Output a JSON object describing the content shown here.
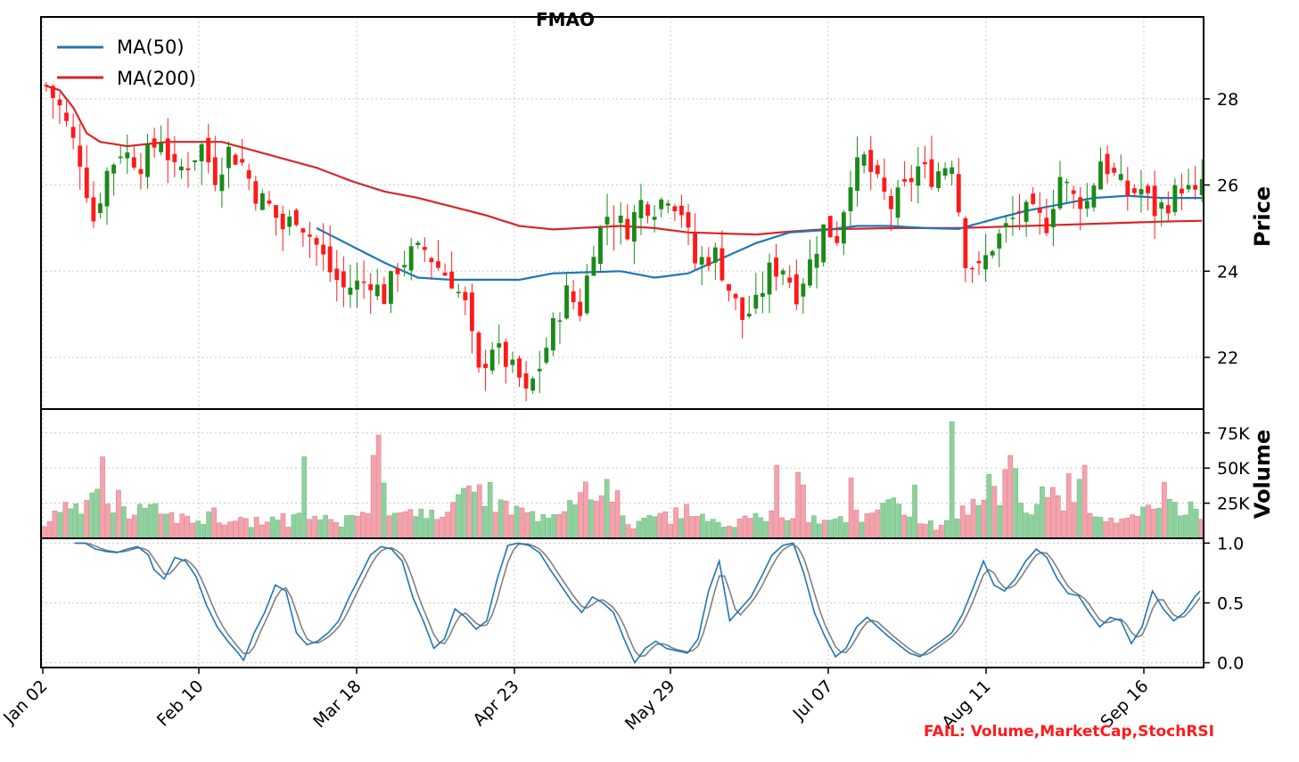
{
  "chart_data": [
    {
      "type": "candlestick",
      "title": "FMAO",
      "ylabel": "Price",
      "ylim": [
        20.8,
        29.9
      ],
      "yticks": [
        "22",
        "24",
        "26",
        "28"
      ],
      "xticks": [
        "Jan 02",
        "Feb 10",
        "Mar 18",
        "Apr 23",
        "May 29",
        "Jul 07",
        "Aug 11",
        "Sep 16"
      ],
      "legend_position": "upper-left",
      "series": [
        {
          "name": "MA(50)",
          "color": "#1f77b4"
        },
        {
          "name": "MA(200)",
          "color": "#d62728"
        }
      ],
      "ma50_keypoints": [
        [
          40,
          25.0
        ],
        [
          45,
          24.6
        ],
        [
          50,
          24.2
        ],
        [
          55,
          23.85
        ],
        [
          60,
          23.8
        ],
        [
          70,
          23.8
        ],
        [
          75,
          23.95
        ],
        [
          85,
          24.0
        ],
        [
          90,
          23.85
        ],
        [
          95,
          23.95
        ],
        [
          100,
          24.3
        ],
        [
          105,
          24.65
        ],
        [
          110,
          24.9
        ],
        [
          115,
          24.95
        ],
        [
          120,
          25.05
        ],
        [
          125,
          25.05
        ],
        [
          130,
          25.0
        ],
        [
          135,
          24.98
        ],
        [
          140,
          25.2
        ],
        [
          145,
          25.4
        ],
        [
          150,
          25.55
        ],
        [
          155,
          25.7
        ],
        [
          160,
          25.75
        ],
        [
          165,
          25.7
        ],
        [
          171,
          25.7
        ]
      ],
      "ma200_keypoints": [
        [
          0,
          28.3
        ],
        [
          2,
          28.2
        ],
        [
          4,
          27.8
        ],
        [
          6,
          27.2
        ],
        [
          8,
          27.0
        ],
        [
          12,
          26.9
        ],
        [
          18,
          27.0
        ],
        [
          26,
          27.0
        ],
        [
          33,
          26.7
        ],
        [
          40,
          26.4
        ],
        [
          45,
          26.1
        ],
        [
          50,
          25.85
        ],
        [
          55,
          25.7
        ],
        [
          60,
          25.5
        ],
        [
          65,
          25.3
        ],
        [
          70,
          25.05
        ],
        [
          75,
          24.97
        ],
        [
          85,
          25.05
        ],
        [
          90,
          25.0
        ],
        [
          95,
          24.9
        ],
        [
          105,
          24.85
        ],
        [
          110,
          24.92
        ],
        [
          115,
          24.97
        ],
        [
          125,
          25.0
        ],
        [
          135,
          25.0
        ],
        [
          145,
          25.05
        ],
        [
          155,
          25.1
        ],
        [
          165,
          25.15
        ],
        [
          171,
          25.17
        ]
      ],
      "price_keypoints": [
        [
          0,
          28.3
        ],
        [
          2,
          27.8
        ],
        [
          5,
          26.6
        ],
        [
          7,
          25.2
        ],
        [
          9,
          26.3
        ],
        [
          11,
          26.8
        ],
        [
          14,
          26.5
        ],
        [
          17,
          27.1
        ],
        [
          19,
          26.3
        ],
        [
          21,
          26.5
        ],
        [
          23,
          26.9
        ],
        [
          25,
          26.2
        ],
        [
          27,
          26.8
        ],
        [
          29,
          26.5
        ],
        [
          31,
          25.8
        ],
        [
          33,
          25.5
        ],
        [
          35,
          25.0
        ],
        [
          37,
          25.3
        ],
        [
          40,
          24.6
        ],
        [
          42,
          24.0
        ],
        [
          44,
          23.6
        ],
        [
          46,
          23.7
        ],
        [
          48,
          23.8
        ],
        [
          50,
          23.4
        ],
        [
          52,
          24.1
        ],
        [
          54,
          24.4
        ],
        [
          56,
          24.5
        ],
        [
          58,
          24.1
        ],
        [
          60,
          23.8
        ],
        [
          62,
          23.2
        ],
        [
          64,
          21.6
        ],
        [
          66,
          22.3
        ],
        [
          68,
          21.9
        ],
        [
          70,
          21.5
        ],
        [
          71,
          21.1
        ],
        [
          73,
          21.8
        ],
        [
          75,
          22.7
        ],
        [
          77,
          23.5
        ],
        [
          79,
          23.1
        ],
        [
          81,
          24.6
        ],
        [
          83,
          25.3
        ],
        [
          86,
          25.0
        ],
        [
          88,
          25.6
        ],
        [
          90,
          25.5
        ],
        [
          92,
          25.8
        ],
        [
          94,
          25.4
        ],
        [
          96,
          24.2
        ],
        [
          99,
          24.4
        ],
        [
          101,
          23.6
        ],
        [
          103,
          22.9
        ],
        [
          105,
          23.2
        ],
        [
          107,
          24.0
        ],
        [
          109,
          24.1
        ],
        [
          111,
          23.5
        ],
        [
          113,
          24.2
        ],
        [
          115,
          25.0
        ],
        [
          117,
          24.8
        ],
        [
          119,
          26.2
        ],
        [
          121,
          26.6
        ],
        [
          123,
          26.0
        ],
        [
          125,
          25.5
        ],
        [
          127,
          25.9
        ],
        [
          129,
          26.4
        ],
        [
          131,
          26.2
        ],
        [
          134,
          26.6
        ],
        [
          136,
          24.3
        ],
        [
          138,
          24.0
        ],
        [
          140,
          24.6
        ],
        [
          142,
          25.0
        ],
        [
          144,
          25.4
        ],
        [
          146,
          25.3
        ],
        [
          148,
          25.1
        ],
        [
          150,
          26.2
        ],
        [
          152,
          25.7
        ],
        [
          154,
          25.6
        ],
        [
          156,
          26.6
        ],
        [
          158,
          26.2
        ],
        [
          160,
          25.8
        ],
        [
          162,
          25.9
        ],
        [
          164,
          25.4
        ],
        [
          166,
          25.6
        ],
        [
          168,
          26.0
        ],
        [
          170,
          25.7
        ],
        [
          171,
          26.1
        ]
      ],
      "n_days": 172
    },
    {
      "type": "bar",
      "ylabel": "Volume",
      "ylim": [
        0,
        92000
      ],
      "yticks": [
        "25K",
        "50K",
        "75K"
      ],
      "ytick_values": [
        25000,
        50000,
        75000
      ],
      "colors": {
        "up": "#8fd19e",
        "down": "#f4a3ad"
      },
      "notable_values": [
        [
          11,
          58000
        ],
        [
          49,
          58000
        ],
        [
          138,
          52000
        ],
        [
          142,
          47000
        ],
        [
          143,
          50000
        ],
        [
          143,
          38000
        ],
        [
          152,
          43000
        ],
        [
          164,
          38000
        ],
        [
          171,
          83000
        ],
        [
          179,
          37000
        ],
        [
          193,
          46000
        ],
        [
          195,
          42000
        ],
        [
          196,
          52000
        ]
      ],
      "volume_keypoints": [
        [
          0,
          13000
        ],
        [
          2,
          18000
        ],
        [
          4,
          22000
        ],
        [
          6,
          20000
        ],
        [
          8,
          26000
        ],
        [
          10,
          18000
        ],
        [
          11,
          58000
        ],
        [
          12,
          16000
        ],
        [
          15,
          20000
        ],
        [
          18,
          17000
        ],
        [
          20,
          13000
        ],
        [
          24,
          17000
        ],
        [
          28,
          14000
        ],
        [
          32,
          12000
        ],
        [
          36,
          13000
        ],
        [
          40,
          14000
        ],
        [
          44,
          13000
        ],
        [
          47,
          15000
        ],
        [
          49,
          58000
        ],
        [
          51,
          18000
        ],
        [
          55,
          15000
        ],
        [
          60,
          22000
        ],
        [
          63,
          30000
        ],
        [
          65,
          35000
        ],
        [
          68,
          22000
        ],
        [
          72,
          14000
        ],
        [
          76,
          17000
        ],
        [
          78,
          22000
        ],
        [
          80,
          37000
        ],
        [
          83,
          37000
        ],
        [
          86,
          10000
        ],
        [
          90,
          13000
        ],
        [
          95,
          18000
        ],
        [
          100,
          8000
        ],
        [
          105,
          14000
        ],
        [
          110,
          16000
        ],
        [
          115,
          12000
        ],
        [
          120,
          16000
        ],
        [
          125,
          22000
        ],
        [
          130,
          9000
        ],
        [
          134,
          10000
        ],
        [
          138,
          42000
        ],
        [
          140,
          24000
        ],
        [
          142,
          48000
        ],
        [
          145,
          25000
        ],
        [
          148,
          30000
        ],
        [
          150,
          22000
        ],
        [
          153,
          16000
        ],
        [
          156,
          11000
        ],
        [
          160,
          12000
        ],
        [
          165,
          30000
        ],
        [
          168,
          20000
        ],
        [
          171,
          22000
        ]
      ]
    },
    {
      "type": "line",
      "ylim": [
        -0.04,
        1.04
      ],
      "yticks": [
        "0.0",
        "0.5",
        "1.0"
      ],
      "ytick_values": [
        0,
        0.5,
        1.0
      ],
      "series": [
        {
          "color": "#1f77b4"
        },
        {
          "color": "#808080"
        }
      ],
      "stochrsi_keypoints": [
        [
          6,
          1.0
        ],
        [
          8,
          1.0
        ],
        [
          10,
          0.95
        ],
        [
          12,
          0.93
        ],
        [
          14,
          0.92
        ],
        [
          16,
          0.95
        ],
        [
          18,
          0.97
        ],
        [
          20,
          0.9
        ],
        [
          21,
          0.78
        ],
        [
          23,
          0.7
        ],
        [
          25,
          0.88
        ],
        [
          27,
          0.85
        ],
        [
          29,
          0.72
        ],
        [
          31,
          0.48
        ],
        [
          33,
          0.3
        ],
        [
          35,
          0.18
        ],
        [
          37,
          0.08
        ],
        [
          38,
          0.02
        ],
        [
          40,
          0.25
        ],
        [
          42,
          0.42
        ],
        [
          44,
          0.65
        ],
        [
          46,
          0.6
        ],
        [
          48,
          0.25
        ],
        [
          50,
          0.15
        ],
        [
          52,
          0.18
        ],
        [
          54,
          0.25
        ],
        [
          56,
          0.35
        ],
        [
          58,
          0.55
        ],
        [
          60,
          0.72
        ],
        [
          62,
          0.9
        ],
        [
          64,
          0.97
        ],
        [
          66,
          0.95
        ],
        [
          68,
          0.85
        ],
        [
          70,
          0.55
        ],
        [
          72,
          0.35
        ],
        [
          74,
          0.12
        ],
        [
          76,
          0.2
        ],
        [
          78,
          0.45
        ],
        [
          80,
          0.38
        ],
        [
          82,
          0.28
        ],
        [
          84,
          0.35
        ],
        [
          86,
          0.7
        ],
        [
          88,
          0.98
        ],
        [
          90,
          1.0
        ],
        [
          92,
          0.98
        ],
        [
          94,
          0.92
        ],
        [
          96,
          0.78
        ],
        [
          98,
          0.65
        ],
        [
          100,
          0.52
        ],
        [
          102,
          0.42
        ],
        [
          104,
          0.55
        ],
        [
          106,
          0.5
        ],
        [
          108,
          0.42
        ],
        [
          110,
          0.2
        ],
        [
          112,
          0.0
        ],
        [
          114,
          0.12
        ],
        [
          116,
          0.18
        ],
        [
          118,
          0.12
        ],
        [
          120,
          0.1
        ],
        [
          122,
          0.08
        ],
        [
          124,
          0.2
        ],
        [
          126,
          0.6
        ],
        [
          128,
          0.85
        ],
        [
          130,
          0.35
        ],
        [
          132,
          0.45
        ],
        [
          134,
          0.55
        ],
        [
          136,
          0.72
        ],
        [
          138,
          0.9
        ],
        [
          140,
          0.98
        ],
        [
          142,
          1.0
        ],
        [
          144,
          0.75
        ],
        [
          146,
          0.42
        ],
        [
          148,
          0.22
        ],
        [
          150,
          0.05
        ],
        [
          152,
          0.12
        ],
        [
          154,
          0.3
        ],
        [
          156,
          0.38
        ],
        [
          158,
          0.3
        ],
        [
          160,
          0.22
        ],
        [
          162,
          0.15
        ],
        [
          164,
          0.08
        ],
        [
          166,
          0.05
        ],
        [
          168,
          0.12
        ],
        [
          170,
          0.18
        ],
        [
          172,
          0.25
        ],
        [
          174,
          0.4
        ],
        [
          176,
          0.62
        ],
        [
          178,
          0.85
        ],
        [
          180,
          0.65
        ],
        [
          182,
          0.6
        ],
        [
          184,
          0.7
        ],
        [
          186,
          0.85
        ],
        [
          188,
          0.95
        ],
        [
          190,
          0.88
        ],
        [
          192,
          0.7
        ],
        [
          194,
          0.58
        ],
        [
          196,
          0.56
        ],
        [
          198,
          0.42
        ],
        [
          200,
          0.3
        ],
        [
          202,
          0.38
        ],
        [
          204,
          0.35
        ],
        [
          206,
          0.16
        ],
        [
          208,
          0.3
        ],
        [
          210,
          0.6
        ],
        [
          212,
          0.45
        ],
        [
          214,
          0.35
        ],
        [
          216,
          0.42
        ],
        [
          218,
          0.55
        ],
        [
          219,
          0.6
        ]
      ],
      "note": "signal is a 3-period SMA of the StochRSI line"
    }
  ],
  "status_text": "FAIL: Volume,MarketCap,StochRSI"
}
